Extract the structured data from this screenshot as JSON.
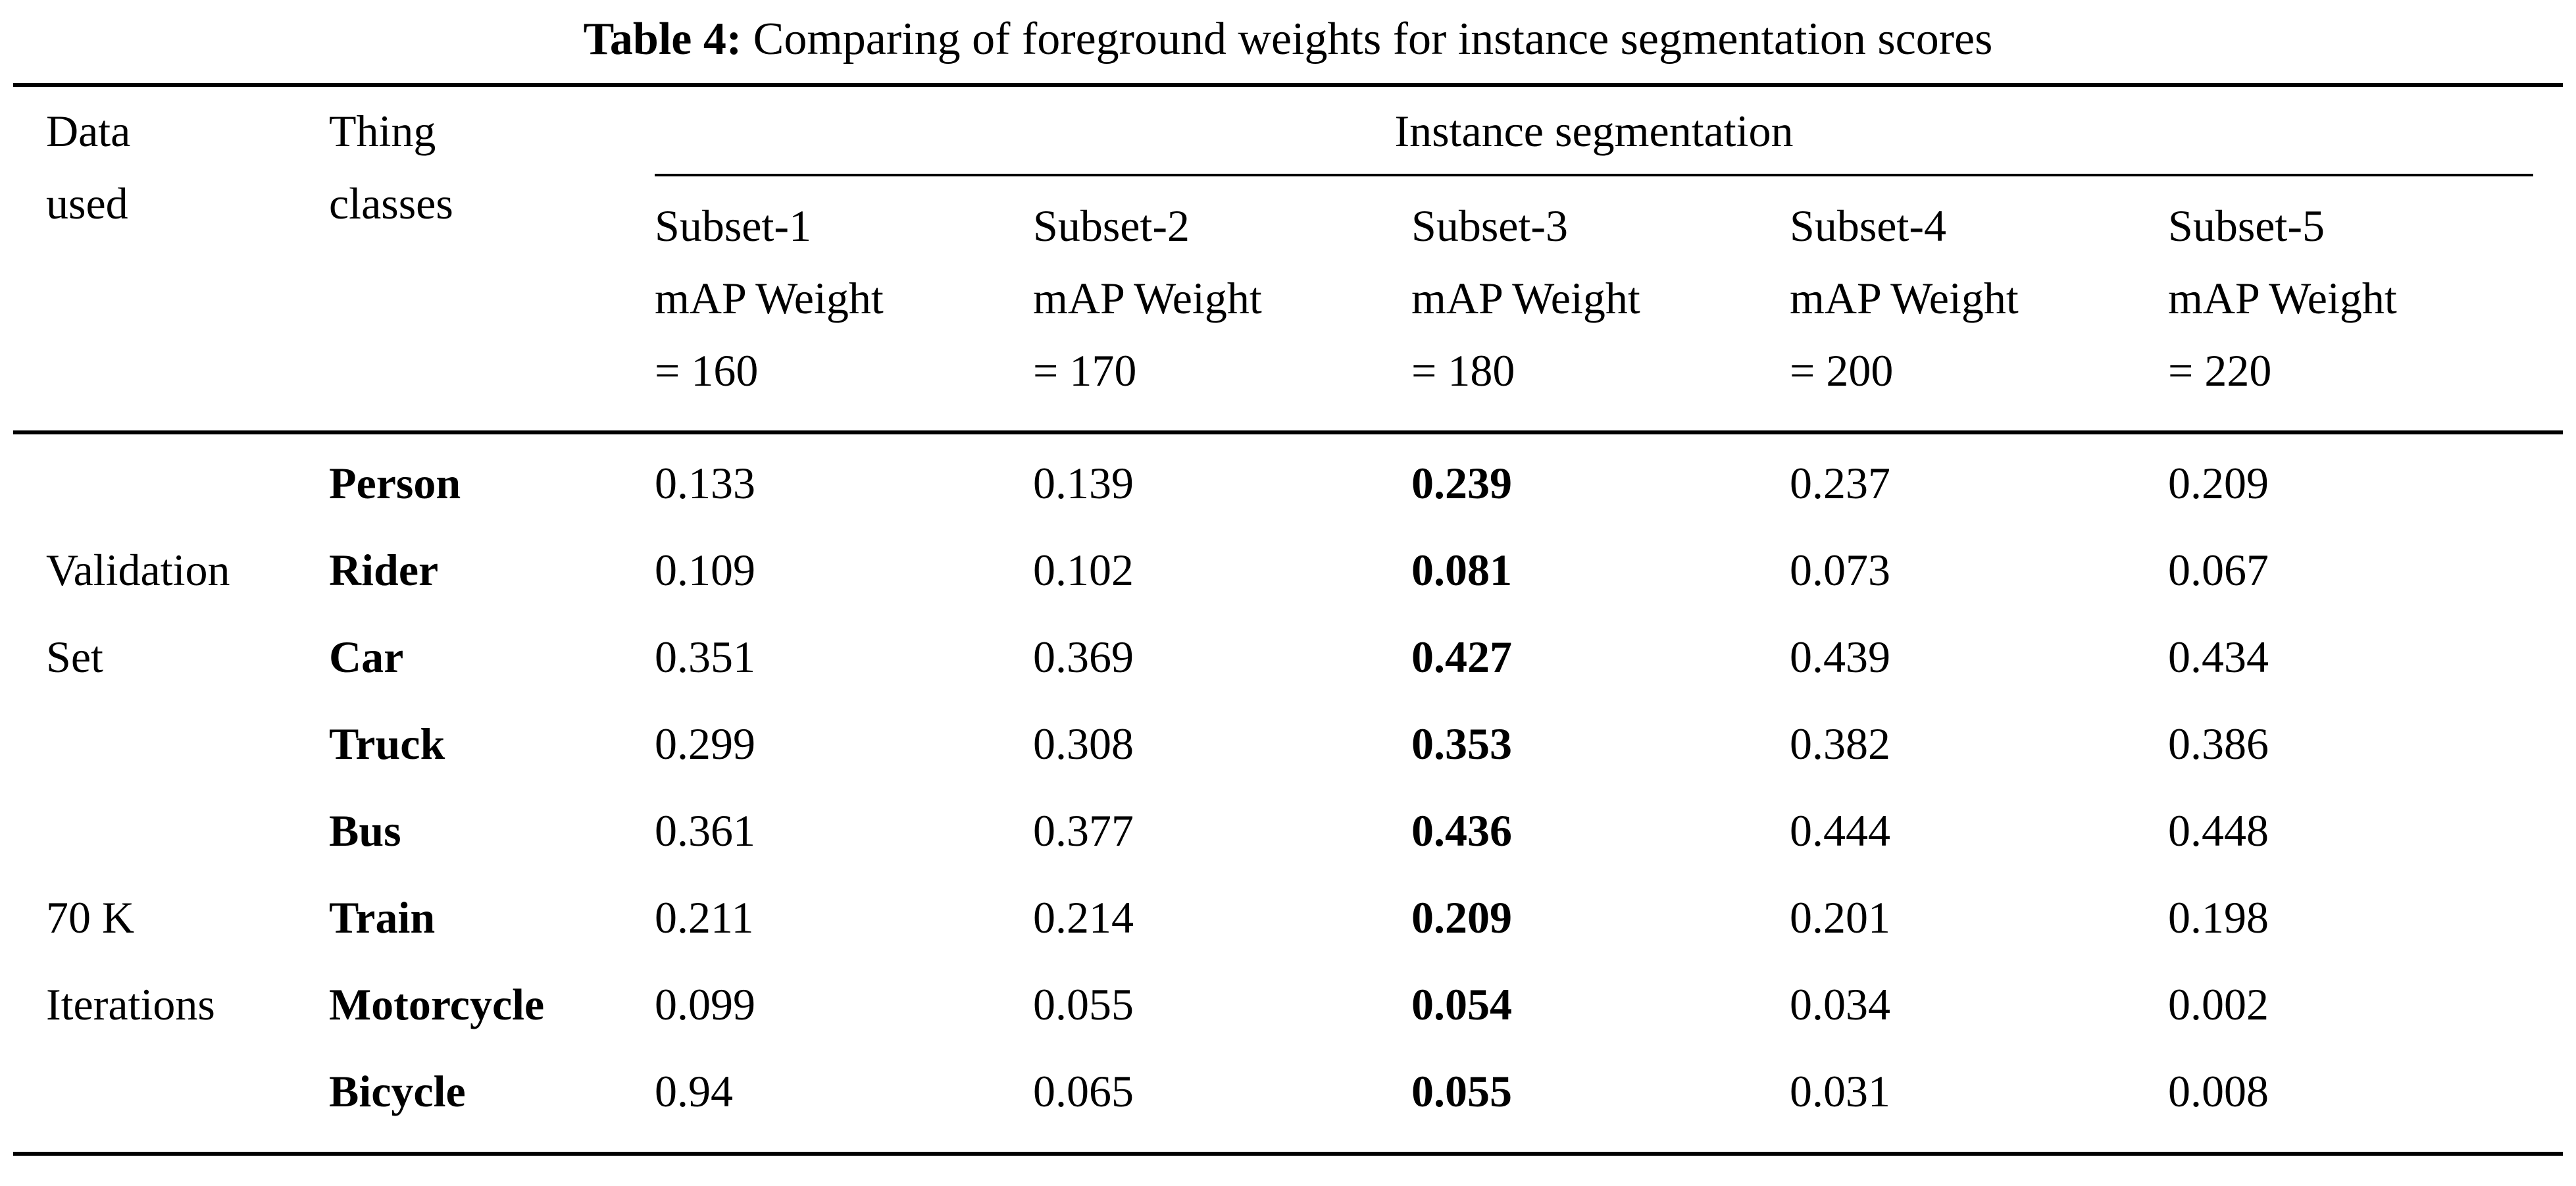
{
  "colors": {
    "text": "#000000",
    "background": "#ffffff",
    "rule": "#000000"
  },
  "caption": {
    "label": "Table 4:",
    "text": "Comparing of foreground weights for instance segmentation scores"
  },
  "table": {
    "col_headers": {
      "data_used": [
        "Data",
        "used"
      ],
      "thing_classes": [
        "Thing",
        "classes"
      ],
      "group": "Instance segmentation",
      "subsets": [
        [
          "Subset-1",
          "mAP Weight",
          "= 160"
        ],
        [
          "Subset-2",
          "mAP Weight",
          "= 170"
        ],
        [
          "Subset-3",
          "mAP Weight",
          "= 180"
        ],
        [
          "Subset-4",
          "mAP Weight",
          "= 200"
        ],
        [
          "Subset-5",
          "mAP Weight",
          "= 220"
        ]
      ]
    },
    "row_group_labels": [
      "Validation Set",
      "70 K Iterations"
    ],
    "rows": [
      {
        "data_used": "",
        "thing_class": "Person",
        "values": [
          "0.133",
          "0.139",
          "0.239",
          "0.237",
          "0.209"
        ]
      },
      {
        "data_used": "Validation",
        "thing_class": "Rider",
        "values": [
          "0.109",
          "0.102",
          "0.081",
          "0.073",
          "0.067"
        ]
      },
      {
        "data_used": "Set",
        "thing_class": "Car",
        "values": [
          "0.351",
          "0.369",
          "0.427",
          "0.439",
          "0.434"
        ]
      },
      {
        "data_used": "",
        "thing_class": "Truck",
        "values": [
          "0.299",
          "0.308",
          "0.353",
          "0.382",
          "0.386"
        ]
      },
      {
        "data_used": "",
        "thing_class": "Bus",
        "values": [
          "0.361",
          "0.377",
          "0.436",
          "0.444",
          "0.448"
        ]
      },
      {
        "data_used": "70 K",
        "thing_class": "Train",
        "values": [
          "0.211",
          "0.214",
          "0.209",
          "0.201",
          "0.198"
        ]
      },
      {
        "data_used": "Iterations",
        "thing_class": "Motorcycle",
        "values": [
          "0.099",
          "0.055",
          "0.054",
          "0.034",
          "0.002"
        ]
      },
      {
        "data_used": "",
        "thing_class": "Bicycle",
        "values": [
          "0.94",
          "0.065",
          "0.055",
          "0.031",
          "0.008"
        ]
      }
    ]
  }
}
